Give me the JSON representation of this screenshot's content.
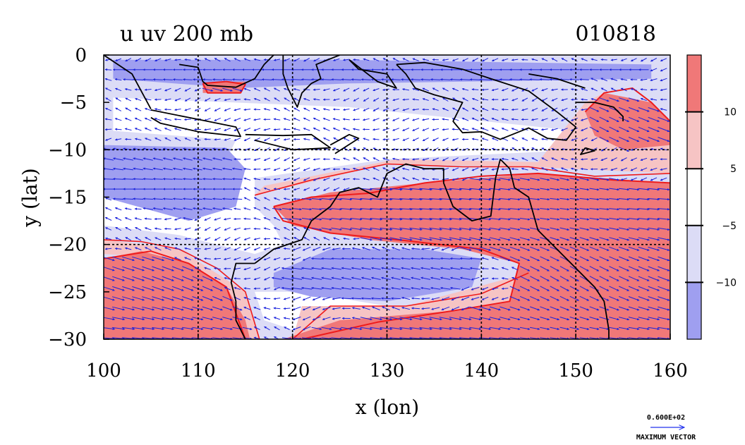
{
  "chart_data": {
    "type": "heatmap",
    "title": "u uv 200 mb",
    "date_label": "010818",
    "xlabel": "x (lon)",
    "ylabel": "y (lat)",
    "xlim": [
      100,
      160
    ],
    "ylim": [
      -30,
      0
    ],
    "x_ticks": [
      {
        "v": 100,
        "label": "100"
      },
      {
        "v": 110,
        "label": "110"
      },
      {
        "v": 120,
        "label": "120"
      },
      {
        "v": 130,
        "label": "130"
      },
      {
        "v": 140,
        "label": "140"
      },
      {
        "v": 150,
        "label": "150"
      },
      {
        "v": 160,
        "label": "160"
      }
    ],
    "y_ticks": [
      {
        "v": 0,
        "label": "0"
      },
      {
        "v": -5,
        "label": "−5"
      },
      {
        "v": -10,
        "label": "−10"
      },
      {
        "v": -15,
        "label": "−15"
      },
      {
        "v": -20,
        "label": "−20"
      },
      {
        "v": -25,
        "label": "−25"
      },
      {
        "v": -30,
        "label": "−30"
      }
    ],
    "grid": true,
    "grid_lon": [
      110,
      120,
      130,
      140,
      150
    ],
    "grid_lat": [
      -10,
      -20
    ],
    "colorbar": {
      "position": "right",
      "bins": [
        {
          "range": "> 10",
          "color": "#f07878"
        },
        {
          "range": "5 to 10",
          "color": "#f6c4c4"
        },
        {
          "range": "-5 to 5",
          "color": "#ffffff"
        },
        {
          "range": "-10 to -5",
          "color": "#dcdcf6"
        },
        {
          "range": "< -10",
          "color": "#9f9ff0"
        }
      ],
      "labels": [
        {
          "v": 10,
          "label": "10"
        },
        {
          "v": 5,
          "label": "5"
        },
        {
          "v": -5,
          "label": "−5"
        },
        {
          "v": -10,
          "label": "−10"
        }
      ]
    },
    "regions": [
      {
        "level": "strong-easterly",
        "points": [
          [
            101,
            -0.5
          ],
          [
            125,
            -0.5
          ],
          [
            158,
            -1
          ],
          [
            158,
            -2.5
          ],
          [
            126,
            -3
          ],
          [
            114,
            -3.5
          ],
          [
            101,
            -2.5
          ]
        ]
      },
      {
        "level": "strong-easterly",
        "points": [
          [
            100,
            -9.5
          ],
          [
            113,
            -9.8
          ],
          [
            115,
            -12
          ],
          [
            114,
            -16
          ],
          [
            109,
            -17.5
          ],
          [
            100,
            -15
          ]
        ]
      },
      {
        "level": "strong-easterly",
        "points": [
          [
            118,
            -23
          ],
          [
            124,
            -20.5
          ],
          [
            134,
            -20.5
          ],
          [
            140,
            -21.5
          ],
          [
            139,
            -24.5
          ],
          [
            130,
            -26
          ],
          [
            122,
            -25.5
          ],
          [
            118,
            -24.5
          ]
        ]
      },
      {
        "level": "strong-westerly",
        "points": [
          [
            118,
            -16
          ],
          [
            124,
            -14.5
          ],
          [
            134,
            -13.5
          ],
          [
            146,
            -12.5
          ],
          [
            160,
            -13.5
          ],
          [
            160,
            -30
          ],
          [
            119,
            -30
          ],
          [
            125,
            -28
          ],
          [
            137,
            -27
          ],
          [
            143,
            -26
          ],
          [
            144,
            -22
          ],
          [
            138,
            -20.5
          ],
          [
            128,
            -19.5
          ],
          [
            120,
            -18
          ]
        ]
      },
      {
        "level": "strong-westerly",
        "points": [
          [
            100,
            -21.5
          ],
          [
            104,
            -20.7
          ],
          [
            109,
            -22
          ],
          [
            113,
            -24.5
          ],
          [
            115,
            -28
          ],
          [
            115.5,
            -30
          ],
          [
            100,
            -30
          ]
        ]
      },
      {
        "level": "strong-westerly",
        "points": [
          [
            153,
            -4
          ],
          [
            158,
            -5
          ],
          [
            160,
            -7
          ],
          [
            160,
            -9.5
          ],
          [
            155,
            -10
          ],
          [
            152,
            -8.5
          ],
          [
            151,
            -6
          ]
        ]
      },
      {
        "level": "strong-westerly",
        "points": [
          [
            110.5,
            -3
          ],
          [
            115,
            -2.8
          ],
          [
            114.5,
            -4
          ],
          [
            110.5,
            -4
          ]
        ]
      },
      {
        "level": "weak-westerly",
        "points": [
          [
            116,
            -14.8
          ],
          [
            130,
            -11.5
          ],
          [
            145,
            -11.8
          ],
          [
            160,
            -12.5
          ],
          [
            160,
            -9.5
          ],
          [
            153,
            -4
          ],
          [
            151,
            -5
          ],
          [
            146,
            -11.3
          ],
          [
            131,
            -11
          ],
          [
            117,
            -13.8
          ]
        ]
      },
      {
        "level": "weak-westerly",
        "points": [
          [
            100,
            -19.5
          ],
          [
            108,
            -20.5
          ],
          [
            115,
            -25
          ],
          [
            116.5,
            -30
          ],
          [
            114,
            -30
          ],
          [
            112,
            -25
          ],
          [
            107,
            -21.5
          ],
          [
            100,
            -21
          ]
        ]
      },
      {
        "level": "weak-westerly",
        "points": [
          [
            121,
            -26.5
          ],
          [
            132,
            -26.5
          ],
          [
            145,
            -23
          ],
          [
            146,
            -28.5
          ],
          [
            152,
            -27.5
          ],
          [
            153,
            -30
          ],
          [
            120,
            -30
          ]
        ]
      }
    ],
    "contours": [
      {
        "level": 5,
        "points": [
          [
            116,
            -14.8
          ],
          [
            122,
            -13.2
          ],
          [
            130,
            -11.5
          ],
          [
            138,
            -11.8
          ],
          [
            145,
            -11.8
          ],
          [
            152,
            -12.8
          ],
          [
            160,
            -12.5
          ]
        ]
      },
      {
        "level": 5,
        "points": [
          [
            100,
            -19.5
          ],
          [
            104,
            -19.7
          ],
          [
            108,
            -20.5
          ],
          [
            112,
            -22.5
          ],
          [
            115,
            -25
          ],
          [
            116.5,
            -30
          ]
        ]
      },
      {
        "level": 5,
        "points": [
          [
            120,
            -30
          ],
          [
            124,
            -26.5
          ],
          [
            132,
            -26.5
          ],
          [
            140,
            -25.2
          ],
          [
            145,
            -23
          ]
        ]
      },
      {
        "level": 10,
        "points": [
          [
            118,
            -16
          ],
          [
            122,
            -15
          ],
          [
            128,
            -14.6
          ],
          [
            134,
            -13.5
          ],
          [
            140,
            -12.8
          ],
          [
            146,
            -12.5
          ],
          [
            154,
            -13.2
          ],
          [
            160,
            -13.5
          ]
        ]
      },
      {
        "level": 10,
        "points": [
          [
            118,
            -16
          ],
          [
            119,
            -17.5
          ],
          [
            124,
            -18.8
          ],
          [
            132,
            -19.6
          ],
          [
            140,
            -20.5
          ],
          [
            144,
            -22
          ],
          [
            143,
            -26
          ],
          [
            137,
            -27
          ],
          [
            129,
            -28.2
          ],
          [
            121,
            -30
          ]
        ]
      },
      {
        "level": 10,
        "points": [
          [
            100,
            -21.5
          ],
          [
            105,
            -20.7
          ],
          [
            109,
            -22
          ],
          [
            113,
            -24.5
          ],
          [
            115,
            -30
          ]
        ]
      },
      {
        "level": 10,
        "points": [
          [
            151,
            -6
          ],
          [
            153,
            -4
          ],
          [
            156,
            -3.5
          ],
          [
            158,
            -5
          ],
          [
            160,
            -7
          ]
        ]
      },
      {
        "level": 10,
        "points": [
          [
            110.5,
            -3
          ],
          [
            113,
            -2.8
          ],
          [
            115,
            -3.1
          ],
          [
            114.5,
            -4
          ],
          [
            111,
            -4
          ],
          [
            110.5,
            -3
          ]
        ]
      }
    ],
    "coastlines": [
      [
        [
          100,
          0
        ],
        [
          103,
          -2
        ],
        [
          105,
          -5.7
        ]
      ],
      [
        [
          105,
          -5.8
        ],
        [
          110,
          -6.8
        ],
        [
          114,
          -7.6
        ],
        [
          114.5,
          -8.6
        ],
        [
          110,
          -8.1
        ],
        [
          106,
          -7.2
        ],
        [
          105,
          -6.6
        ]
      ],
      [
        [
          115,
          -8.4
        ],
        [
          119,
          -8.5
        ],
        [
          122,
          -8.4
        ],
        [
          124,
          -9.8
        ],
        [
          120,
          -10
        ],
        [
          116,
          -9
        ]
      ],
      [
        [
          124,
          -9.5
        ],
        [
          126,
          -8.4
        ],
        [
          127,
          -8.8
        ],
        [
          124.5,
          -10.4
        ]
      ],
      [
        [
          108,
          -1
        ],
        [
          110,
          -1.3
        ],
        [
          110.5,
          -2.8
        ],
        [
          111,
          -3.2
        ],
        [
          114,
          -3.4
        ],
        [
          116,
          -2.5
        ],
        [
          117,
          -1
        ],
        [
          118,
          0
        ]
      ],
      [
        [
          119,
          0
        ],
        [
          119,
          -2
        ],
        [
          119.5,
          -3.5
        ],
        [
          120.5,
          -5.5
        ],
        [
          121,
          -4
        ],
        [
          122,
          -3
        ],
        [
          123,
          -2.5
        ],
        [
          122.5,
          -1
        ],
        [
          123.5,
          -0.6
        ],
        [
          125,
          0
        ]
      ],
      [
        [
          126,
          -0.5
        ],
        [
          129,
          -2.8
        ],
        [
          131,
          -3.5
        ],
        [
          130,
          -2
        ],
        [
          127,
          -1.5
        ],
        [
          126,
          -0.5
        ]
      ],
      [
        [
          131,
          -1
        ],
        [
          134,
          -0.8
        ],
        [
          138,
          -1.5
        ],
        [
          141,
          -2.5
        ],
        [
          145,
          -3.8
        ],
        [
          148,
          -6
        ],
        [
          150,
          -7.6
        ],
        [
          149,
          -9
        ],
        [
          147,
          -8.8
        ],
        [
          145,
          -7.7
        ],
        [
          142,
          -8.9
        ],
        [
          140,
          -8.1
        ],
        [
          138,
          -8.2
        ],
        [
          137,
          -7
        ],
        [
          138,
          -5
        ],
        [
          135,
          -4.2
        ],
        [
          133,
          -3.5
        ],
        [
          132,
          -2
        ],
        [
          131,
          -1
        ]
      ],
      [
        [
          116,
          -22
        ],
        [
          114,
          -22
        ],
        [
          113.5,
          -24
        ],
        [
          114,
          -26
        ],
        [
          114,
          -28
        ],
        [
          115,
          -30
        ]
      ],
      [
        [
          116,
          -22
        ],
        [
          118,
          -20.5
        ],
        [
          121,
          -19.5
        ],
        [
          122,
          -17.5
        ],
        [
          124,
          -16
        ],
        [
          125,
          -14.5
        ],
        [
          127,
          -14
        ],
        [
          129,
          -15
        ],
        [
          130,
          -12.5
        ],
        [
          132,
          -11.5
        ],
        [
          134,
          -12
        ],
        [
          136,
          -12
        ],
        [
          136,
          -13.5
        ],
        [
          137,
          -16
        ],
        [
          139,
          -17.5
        ],
        [
          141,
          -17
        ],
        [
          141.5,
          -13
        ],
        [
          142,
          -11
        ],
        [
          143,
          -12
        ],
        [
          143.5,
          -14
        ],
        [
          145,
          -15
        ],
        [
          146,
          -18.5
        ],
        [
          147,
          -19.5
        ],
        [
          149,
          -21.5
        ],
        [
          150,
          -22.5
        ],
        [
          152,
          -24.5
        ],
        [
          153,
          -26
        ],
        [
          153.5,
          -29
        ],
        [
          153.5,
          -30
        ]
      ],
      [
        [
          150,
          -5
        ],
        [
          152,
          -5
        ],
        [
          154,
          -5.5
        ],
        [
          155,
          -6.5
        ],
        [
          155,
          -7
        ]
      ],
      [
        [
          145,
          -2
        ],
        [
          148,
          -2.5
        ],
        [
          151,
          -3.5
        ]
      ],
      [
        [
          151,
          -9.8
        ],
        [
          152,
          -10.1
        ],
        [
          150.5,
          -10.5
        ],
        [
          151,
          -9.8
        ]
      ]
    ],
    "vector_legend": {
      "value_label": "0.600E+02",
      "caption": "MAXIMUM VECTOR",
      "max_speed": 60
    }
  }
}
